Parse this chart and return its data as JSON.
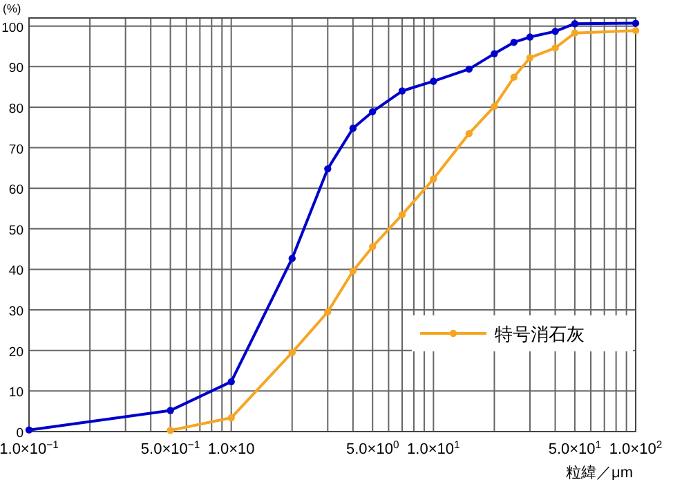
{
  "chart_data": {
    "type": "line",
    "ylabel": "(%)",
    "xlabel": "粒緯／μm",
    "log": "x",
    "grid": true,
    "marker": "circle",
    "line_style": "solid",
    "legend": "right",
    "xlim": [
      0.1,
      100
    ],
    "ylim": [
      0,
      102
    ],
    "xticks": [
      {
        "value": 0.1,
        "label": "1.0×10$^{−1}$"
      },
      {
        "value": 0.2,
        "label": null
      },
      {
        "value": 0.3,
        "label": null
      },
      {
        "value": 0.4,
        "label": null
      },
      {
        "value": 0.5,
        "label": "5.0×10$^{−1}$"
      },
      {
        "value": 0.6,
        "label": null
      },
      {
        "value": 0.7,
        "label": null
      },
      {
        "value": 0.8,
        "label": null
      },
      {
        "value": 0.9,
        "label": null
      },
      {
        "value": 1,
        "label": "1.0×10"
      },
      {
        "value": 2,
        "label": null
      },
      {
        "value": 3,
        "label": null
      },
      {
        "value": 4,
        "label": null
      },
      {
        "value": 5,
        "label": "5.0×10$^{0}$"
      },
      {
        "value": 6,
        "label": null
      },
      {
        "value": 7,
        "label": null
      },
      {
        "value": 8,
        "label": null
      },
      {
        "value": 9,
        "label": null
      },
      {
        "value": 10,
        "label": "1.0×10$^{1}$"
      },
      {
        "value": 20,
        "label": null
      },
      {
        "value": 30,
        "label": null
      },
      {
        "value": 40,
        "label": null
      },
      {
        "value": 50,
        "label": "5.0×10$^{1}$"
      },
      {
        "value": 60,
        "label": null
      },
      {
        "value": 70,
        "label": null
      },
      {
        "value": 80,
        "label": null
      },
      {
        "value": 90,
        "label": null
      },
      {
        "value": 100,
        "label": "1.0×10$^{2}$"
      }
    ],
    "yticks": [
      0,
      10,
      20,
      30,
      40,
      50,
      60,
      70,
      80,
      90,
      100
    ],
    "series": [
      {
        "color": "#0000cc",
        "x": [
          0.1,
          0.5,
          1,
          2,
          3,
          4,
          5,
          7,
          10,
          15,
          20,
          25,
          30,
          40,
          50,
          100
        ],
        "values": [
          0.4,
          5.2,
          12.3,
          42.7,
          64.8,
          74.8,
          78.9,
          84.0,
          86.4,
          89.4,
          93.2,
          96.0,
          97.3,
          98.7,
          100.6,
          100.7
        ]
      },
      {
        "name": "特号消石灰",
        "color": "#f5a623",
        "x": [
          0.5,
          1,
          2,
          3,
          4,
          5,
          7,
          10,
          15,
          20,
          25,
          30,
          40,
          50,
          100
        ],
        "values": [
          0.3,
          3.4,
          19.5,
          29.5,
          39.6,
          45.6,
          53.5,
          62.3,
          73.5,
          80.2,
          87.4,
          92.2,
          94.6,
          98.3,
          98.9
        ]
      }
    ]
  }
}
